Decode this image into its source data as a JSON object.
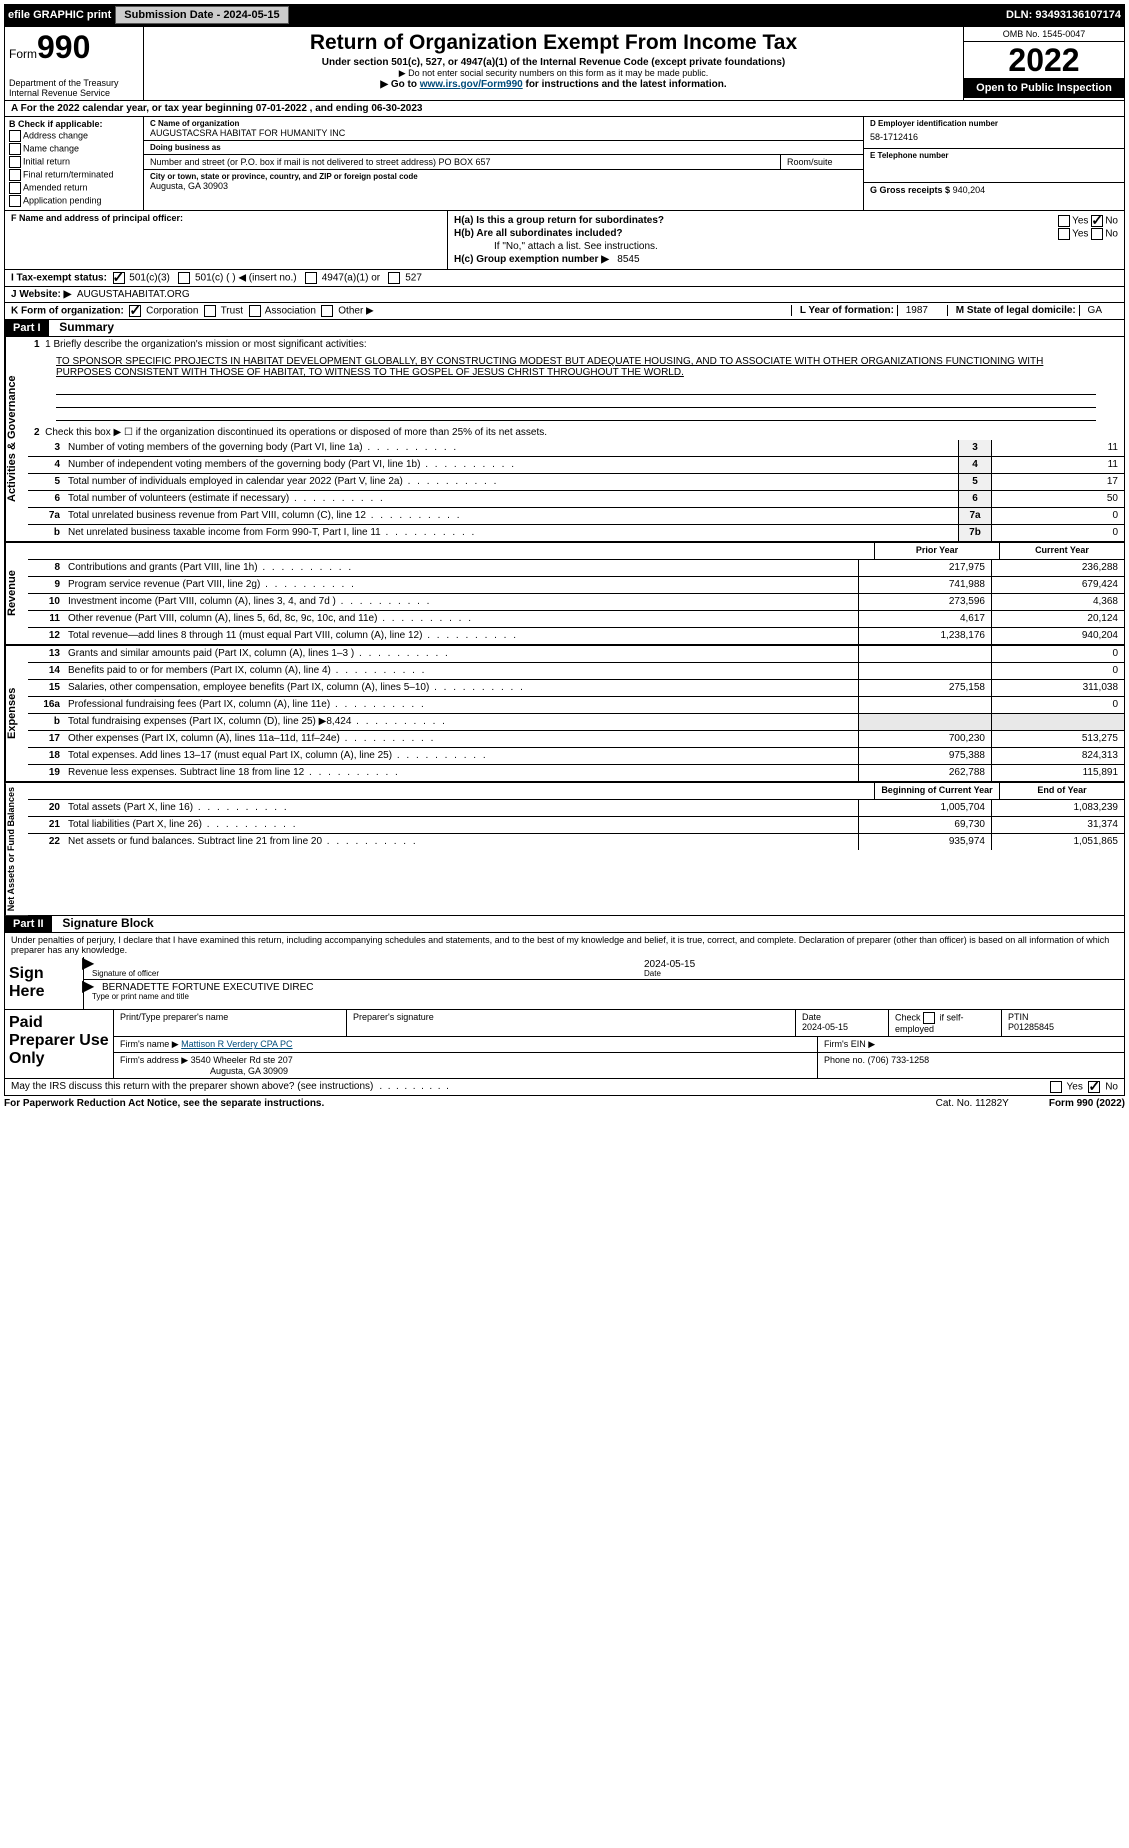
{
  "topbar": {
    "efile_label": "efile GRAPHIC print",
    "submission_label": "Submission Date - 2024-05-15",
    "dln_label": "DLN: 93493136107174"
  },
  "header": {
    "form_prefix": "Form",
    "form_number": "990",
    "dept": "Department of the Treasury",
    "irs": "Internal Revenue Service",
    "title": "Return of Organization Exempt From Income Tax",
    "subtitle": "Under section 501(c), 527, or 4947(a)(1) of the Internal Revenue Code (except private foundations)",
    "note1": "▶ Do not enter social security numbers on this form as it may be made public.",
    "note2_pre": "▶ Go to ",
    "note2_link": "www.irs.gov/Form990",
    "note2_post": " for instructions and the latest information.",
    "omb": "OMB No. 1545-0047",
    "year": "2022",
    "open_public": "Open to Public Inspection"
  },
  "row_a": "A For the 2022 calendar year, or tax year beginning 07-01-2022   , and ending 06-30-2023",
  "b": {
    "label": "B Check if applicable:",
    "items": [
      "Address change",
      "Name change",
      "Initial return",
      "Final return/terminated",
      "Amended return",
      "Application pending"
    ]
  },
  "c": {
    "name_label": "C Name of organization",
    "name": "AUGUSTACSRA HABITAT FOR HUMANITY INC",
    "dba_label": "Doing business as",
    "dba": "",
    "street_label": "Number and street (or P.O. box if mail is not delivered to street address)",
    "street": "PO BOX 657",
    "room_label": "Room/suite",
    "city_label": "City or town, state or province, country, and ZIP or foreign postal code",
    "city": "Augusta, GA  30903"
  },
  "d": {
    "ein_label": "D Employer identification number",
    "ein": "58-1712416",
    "phone_label": "E Telephone number",
    "phone": "",
    "gross_label": "G Gross receipts $",
    "gross": "940,204"
  },
  "f": {
    "label": "F  Name and address of principal officer:",
    "value": ""
  },
  "h": {
    "a_label": "H(a)  Is this a group return for subordinates?",
    "a_yes": "Yes",
    "a_no": "No",
    "b_label": "H(b)  Are all subordinates included?",
    "b_yes": "Yes",
    "b_no": "No",
    "b_note": "If \"No,\" attach a list. See instructions.",
    "c_label": "H(c)  Group exemption number ▶",
    "c_val": "8545"
  },
  "i": {
    "label": "I  Tax-exempt status:",
    "opt1": "501(c)(3)",
    "opt2": "501(c) (  ) ◀ (insert no.)",
    "opt3": "4947(a)(1) or",
    "opt4": "527"
  },
  "j": {
    "label": "J  Website: ▶",
    "value": "AUGUSTAHABITAT.ORG"
  },
  "k": {
    "label": "K Form of organization:",
    "corp": "Corporation",
    "trust": "Trust",
    "assoc": "Association",
    "other": "Other ▶",
    "l_label": "L Year of formation:",
    "l_val": "1987",
    "m_label": "M State of legal domicile:",
    "m_val": "GA"
  },
  "part1": {
    "hdr": "Part I",
    "title": "Summary",
    "line1_label": "1  Briefly describe the organization's mission or most significant activities:",
    "mission": "TO SPONSOR SPECIFIC PROJECTS IN HABITAT DEVELOPMENT GLOBALLY, BY CONSTRUCTING MODEST BUT ADEQUATE HOUSING, AND TO ASSOCIATE WITH OTHER ORGANIZATIONS FUNCTIONING WITH PURPOSES CONSISTENT WITH THOSE OF HABITAT, TO WITNESS TO THE GOSPEL OF JESUS CHRIST THROUGHOUT THE WORLD.",
    "line2": "Check this box ▶ ☐ if the organization discontinued its operations or disposed of more than 25% of its net assets."
  },
  "governance": {
    "side": "Activities & Governance",
    "rows": [
      {
        "n": "3",
        "d": "Number of voting members of the governing body (Part VI, line 1a)",
        "box": "3",
        "v": "11"
      },
      {
        "n": "4",
        "d": "Number of independent voting members of the governing body (Part VI, line 1b)",
        "box": "4",
        "v": "11"
      },
      {
        "n": "5",
        "d": "Total number of individuals employed in calendar year 2022 (Part V, line 2a)",
        "box": "5",
        "v": "17"
      },
      {
        "n": "6",
        "d": "Total number of volunteers (estimate if necessary)",
        "box": "6",
        "v": "50"
      },
      {
        "n": "7a",
        "d": "Total unrelated business revenue from Part VIII, column (C), line 12",
        "box": "7a",
        "v": "0"
      },
      {
        "n": "b",
        "d": "Net unrelated business taxable income from Form 990-T, Part I, line 11",
        "box": "7b",
        "v": "0"
      }
    ]
  },
  "revenue": {
    "side": "Revenue",
    "col1": "Prior Year",
    "col2": "Current Year",
    "rows": [
      {
        "n": "8",
        "d": "Contributions and grants (Part VIII, line 1h)",
        "py": "217,975",
        "cy": "236,288"
      },
      {
        "n": "9",
        "d": "Program service revenue (Part VIII, line 2g)",
        "py": "741,988",
        "cy": "679,424"
      },
      {
        "n": "10",
        "d": "Investment income (Part VIII, column (A), lines 3, 4, and 7d )",
        "py": "273,596",
        "cy": "4,368"
      },
      {
        "n": "11",
        "d": "Other revenue (Part VIII, column (A), lines 5, 6d, 8c, 9c, 10c, and 11e)",
        "py": "4,617",
        "cy": "20,124"
      },
      {
        "n": "12",
        "d": "Total revenue—add lines 8 through 11 (must equal Part VIII, column (A), line 12)",
        "py": "1,238,176",
        "cy": "940,204"
      }
    ]
  },
  "expenses": {
    "side": "Expenses",
    "rows": [
      {
        "n": "13",
        "d": "Grants and similar amounts paid (Part IX, column (A), lines 1–3 )",
        "py": "",
        "cy": "0"
      },
      {
        "n": "14",
        "d": "Benefits paid to or for members (Part IX, column (A), line 4)",
        "py": "",
        "cy": "0"
      },
      {
        "n": "15",
        "d": "Salaries, other compensation, employee benefits (Part IX, column (A), lines 5–10)",
        "py": "275,158",
        "cy": "311,038"
      },
      {
        "n": "16a",
        "d": "Professional fundraising fees (Part IX, column (A), line 11e)",
        "py": "",
        "cy": "0"
      },
      {
        "n": "b",
        "d": "Total fundraising expenses (Part IX, column (D), line 25) ▶8,424",
        "py": "gray",
        "cy": "gray"
      },
      {
        "n": "17",
        "d": "Other expenses (Part IX, column (A), lines 11a–11d, 11f–24e)",
        "py": "700,230",
        "cy": "513,275"
      },
      {
        "n": "18",
        "d": "Total expenses. Add lines 13–17 (must equal Part IX, column (A), line 25)",
        "py": "975,388",
        "cy": "824,313"
      },
      {
        "n": "19",
        "d": "Revenue less expenses. Subtract line 18 from line 12",
        "py": "262,788",
        "cy": "115,891"
      }
    ]
  },
  "netassets": {
    "side": "Net Assets or Fund Balances",
    "col1": "Beginning of Current Year",
    "col2": "End of Year",
    "rows": [
      {
        "n": "20",
        "d": "Total assets (Part X, line 16)",
        "py": "1,005,704",
        "cy": "1,083,239"
      },
      {
        "n": "21",
        "d": "Total liabilities (Part X, line 26)",
        "py": "69,730",
        "cy": "31,374"
      },
      {
        "n": "22",
        "d": "Net assets or fund balances. Subtract line 21 from line 20",
        "py": "935,974",
        "cy": "1,051,865"
      }
    ]
  },
  "part2": {
    "hdr": "Part II",
    "title": "Signature Block",
    "penalty": "Under penalties of perjury, I declare that I have examined this return, including accompanying schedules and statements, and to the best of my knowledge and belief, it is true, correct, and complete. Declaration of preparer (other than officer) is based on all information of which preparer has any knowledge."
  },
  "sign": {
    "left": "Sign Here",
    "sig_lbl": "Signature of officer",
    "date": "2024-05-15",
    "date_lbl": "Date",
    "name": "BERNADETTE FORTUNE  EXECUTIVE DIREC",
    "name_lbl": "Type or print name and title"
  },
  "prep": {
    "left": "Paid Preparer Use Only",
    "h1": "Print/Type preparer's name",
    "h2": "Preparer's signature",
    "h3": "Date",
    "h3v": "2024-05-15",
    "h4_pre": "Check",
    "h4_post": "if self-employed",
    "h5": "PTIN",
    "h5v": "P01285845",
    "firm_label": "Firm's name    ▶",
    "firm": "Mattison R Verdery CPA PC",
    "ein_label": "Firm's EIN ▶",
    "addr_label": "Firm's address ▶",
    "addr1": "3540 Wheeler Rd ste 207",
    "addr2": "Augusta, GA  30909",
    "phone_label": "Phone no.",
    "phone": "(706) 733-1258"
  },
  "footer": {
    "discuss": "May the IRS discuss this return with the preparer shown above? (see instructions)",
    "yes": "Yes",
    "no": "No",
    "paperwork": "For Paperwork Reduction Act Notice, see the separate instructions.",
    "cat": "Cat. No. 11282Y",
    "form": "Form 990 (2022)"
  }
}
